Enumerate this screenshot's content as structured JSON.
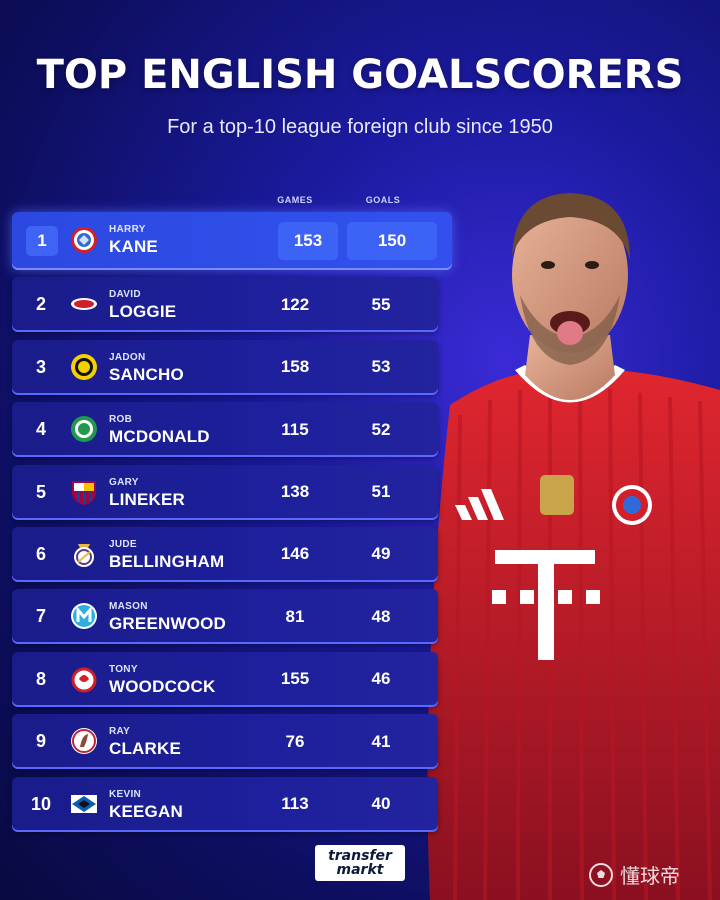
{
  "header": {
    "title": "TOP ENGLISH GOALSCORERS",
    "subtitle": "For a top-10 league foreign club since 1950"
  },
  "columns": {
    "games": "GAMES",
    "goals": "GOALS"
  },
  "rows": [
    {
      "rank": "1",
      "first": "HARRY",
      "last": "KANE",
      "games": "153",
      "goals": "150",
      "club_icon": "bayern-crest"
    },
    {
      "rank": "2",
      "first": "DAVID",
      "last": "LOGGIE",
      "games": "122",
      "goals": "55",
      "club_icon": "az-crest"
    },
    {
      "rank": "3",
      "first": "JADON",
      "last": "SANCHO",
      "games": "158",
      "goals": "53",
      "club_icon": "bvb-crest"
    },
    {
      "rank": "4",
      "first": "ROB",
      "last": "MCDONALD",
      "games": "115",
      "goals": "52",
      "club_icon": "groningen-crest"
    },
    {
      "rank": "5",
      "first": "GARY",
      "last": "LINEKER",
      "games": "138",
      "goals": "51",
      "club_icon": "barcelona-crest"
    },
    {
      "rank": "6",
      "first": "JUDE",
      "last": "BELLINGHAM",
      "games": "146",
      "goals": "49",
      "club_icon": "real-madrid-crest"
    },
    {
      "rank": "7",
      "first": "MASON",
      "last": "GREENWOOD",
      "games": "81",
      "goals": "48",
      "club_icon": "marseille-crest"
    },
    {
      "rank": "8",
      "first": "TONY",
      "last": "WOODCOCK",
      "games": "155",
      "goals": "46",
      "club_icon": "koln-crest"
    },
    {
      "rank": "9",
      "first": "RAY",
      "last": "CLARKE",
      "games": "76",
      "goals": "41",
      "club_icon": "ajax-crest"
    },
    {
      "rank": "10",
      "first": "KEVIN",
      "last": "KEEGAN",
      "games": "113",
      "goals": "40",
      "club_icon": "hamburg-crest"
    }
  ],
  "footer": {
    "logo_line1": "transfer",
    "logo_line2": "markt",
    "watermark": "懂球帝"
  },
  "colors": {
    "background": "#1b1a9e",
    "row": "#1d1f9c",
    "highlight_row": "#2f4fe8",
    "kit_red": "#d41e2a"
  }
}
